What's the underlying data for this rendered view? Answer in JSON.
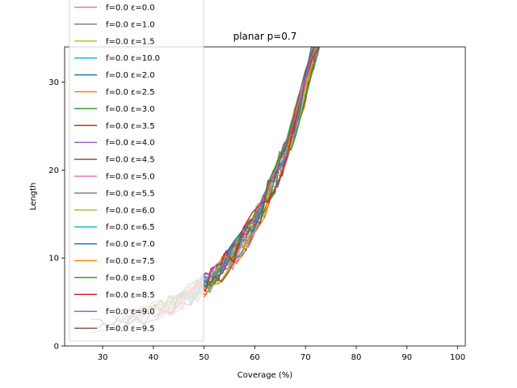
{
  "chart_data": {
    "type": "line",
    "title": "planar p=0.7",
    "xlabel": "Coverage (%)",
    "ylabel": "Length",
    "xlim": [
      22.5,
      101.5
    ],
    "ylim": [
      0,
      34
    ],
    "xticks": [
      30,
      40,
      50,
      60,
      70,
      80,
      90,
      100
    ],
    "yticks": [
      0,
      10,
      20,
      30
    ],
    "grid": false,
    "legend_position": "upper-left",
    "series": [
      {
        "name": "f=0.0 ε=0.0",
        "color": "#e377c2"
      },
      {
        "name": "f=0.0 ε=1.0",
        "color": "#7f7f7f"
      },
      {
        "name": "f=0.0 ε=1.5",
        "color": "#bcbd22"
      },
      {
        "name": "f=0.0 ε=10.0",
        "color": "#17becf"
      },
      {
        "name": "f=0.0 ε=2.0",
        "color": "#1f77b4"
      },
      {
        "name": "f=0.0 ε=2.5",
        "color": "#ff7f0e"
      },
      {
        "name": "f=0.0 ε=3.0",
        "color": "#2ca02c"
      },
      {
        "name": "f=0.0 ε=3.5",
        "color": "#d62728"
      },
      {
        "name": "f=0.0 ε=4.0",
        "color": "#9467bd"
      },
      {
        "name": "f=0.0 ε=4.5",
        "color": "#8c564b"
      },
      {
        "name": "f=0.0 ε=5.0",
        "color": "#e377c2"
      },
      {
        "name": "f=0.0 ε=5.5",
        "color": "#7f7f7f"
      },
      {
        "name": "f=0.0 ε=6.0",
        "color": "#bcbd22"
      },
      {
        "name": "f=0.0 ε=6.5",
        "color": "#17becf"
      },
      {
        "name": "f=0.0 ε=7.0",
        "color": "#1f77b4"
      },
      {
        "name": "f=0.0 ε=7.5",
        "color": "#ff7f0e"
      },
      {
        "name": "f=0.0 ε=8.0",
        "color": "#2ca02c"
      },
      {
        "name": "f=0.0 ε=8.5",
        "color": "#d62728"
      },
      {
        "name": "f=0.0 ε=9.0",
        "color": "#9467bd"
      },
      {
        "name": "f=0.0 ε=9.5",
        "color": "#8c564b"
      }
    ]
  }
}
